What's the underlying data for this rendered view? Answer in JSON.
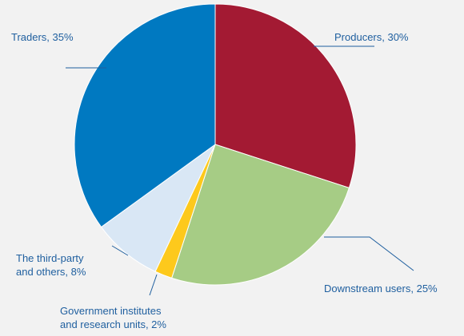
{
  "chart_data": {
    "type": "pie",
    "colors": [
      "#a31a33",
      "#a6cc85",
      "#fdc91c",
      "#d9e7f5",
      "#0079c1"
    ],
    "slices": [
      {
        "label": "Producers",
        "value": 30,
        "value_label": "30%",
        "text_lines": [
          "Producers, 30%"
        ]
      },
      {
        "label": "Downstream users",
        "value": 25,
        "value_label": "25%",
        "text_lines": [
          "Downstream users, 25%"
        ]
      },
      {
        "label": "Government institutes and research units",
        "value": 2,
        "value_label": "2%",
        "text_lines": [
          "Government institutes",
          "and research units, 2%"
        ]
      },
      {
        "label": "The third-party and others",
        "value": 8,
        "value_label": "8%",
        "text_lines": [
          "The third-party",
          "and others, 8%"
        ]
      },
      {
        "label": "Traders",
        "value": 35,
        "value_label": "35%",
        "text_lines": [
          "Traders, 35%"
        ]
      }
    ]
  }
}
